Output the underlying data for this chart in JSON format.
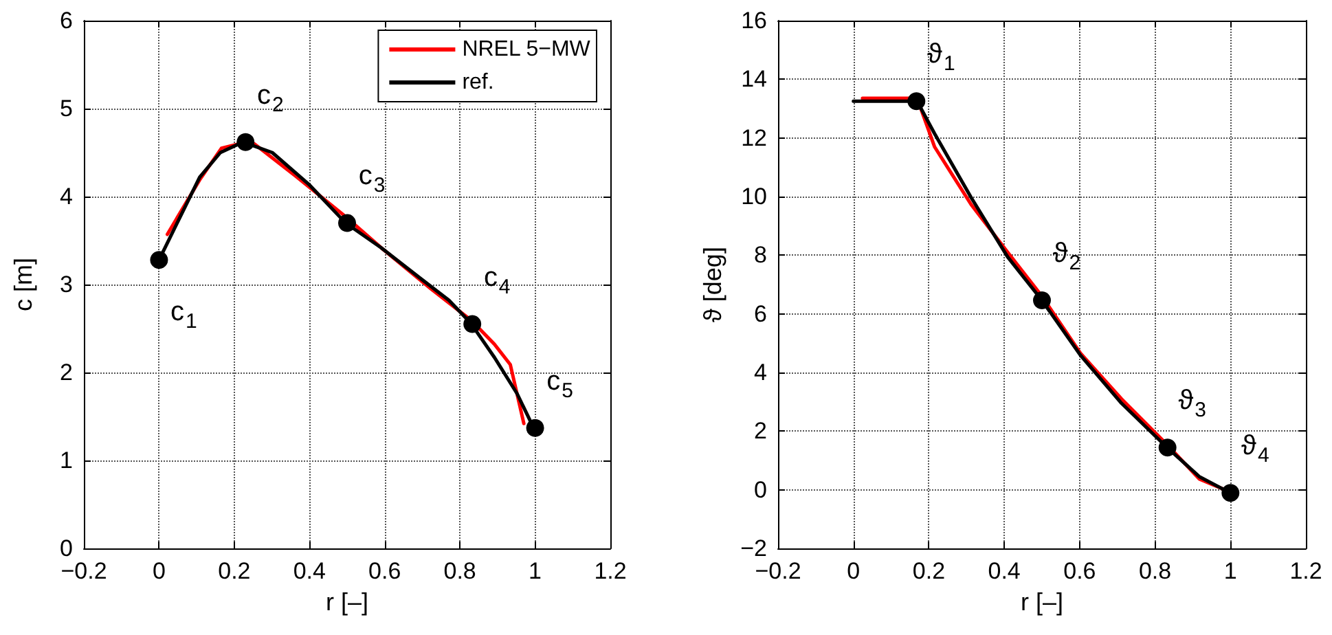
{
  "chart_data": [
    {
      "type": "line",
      "xlabel": "r [–]",
      "ylabel": "c [m]",
      "xlim": [
        -0.2,
        1.2
      ],
      "ylim": [
        0,
        6
      ],
      "xticks": [
        {
          "value": -0.2,
          "label": "−0.2"
        },
        0,
        0.2,
        0.4,
        0.6,
        0.8,
        1,
        1.2
      ],
      "yticks": [
        0,
        1,
        2,
        3,
        4,
        5,
        6
      ],
      "grid": true,
      "legend": "top right",
      "line_style": "solid",
      "marker": "none",
      "series": [
        {
          "name": "NREL 5−MW",
          "color": "#ff0000",
          "x": [
            0.022,
            0.108,
            0.166,
            0.223,
            0.253,
            0.361,
            0.488,
            0.59,
            0.723,
            0.831,
            0.892,
            0.934,
            0.97
          ],
          "values": [
            3.57,
            4.19,
            4.55,
            4.61,
            4.6,
            4.24,
            3.8,
            3.42,
            2.95,
            2.59,
            2.32,
            2.09,
            1.42
          ]
        },
        {
          "name": "ref.",
          "color": "#000000",
          "x": [
            0,
            0.108,
            0.163,
            0.223,
            0.301,
            0.398,
            0.496,
            0.59,
            0.692,
            0.771,
            0.829,
            0.892,
            0.952,
            0.996
          ],
          "values": [
            3.28,
            4.22,
            4.5,
            4.62,
            4.5,
            4.14,
            3.7,
            3.42,
            3.08,
            2.82,
            2.56,
            2.17,
            1.76,
            1.37
          ]
        },
        {
          "type": "scatter",
          "marker": "circle",
          "color": "#000000",
          "x": [
            0,
            0.23,
            0.5,
            0.833,
            1
          ],
          "values": [
            3.28,
            4.62,
            3.7,
            2.55,
            1.37
          ]
        }
      ],
      "annotations": [
        {
          "text": "c$_{1}$",
          "x": 0,
          "y": 3.28
        },
        {
          "text": "c$_{2}$",
          "x": 0.23,
          "y": 4.62
        },
        {
          "text": "c$_{3}$",
          "x": 0.5,
          "y": 3.7
        },
        {
          "text": "c$_{4}$",
          "x": 0.833,
          "y": 2.55
        },
        {
          "text": "c$_{5}$",
          "x": 1,
          "y": 1.37
        }
      ]
    },
    {
      "type": "line",
      "xlabel": "r [–]",
      "ylabel": "ϑ [deg]",
      "xlim": [
        -0.2,
        1.2
      ],
      "ylim": [
        -2,
        16
      ],
      "xticks": [
        {
          "value": -0.2,
          "label": "−0.2"
        },
        0,
        0.2,
        0.4,
        0.6,
        0.8,
        1,
        1.2
      ],
      "yticks": [
        {
          "value": -2,
          "label": "−2"
        },
        0,
        2,
        4,
        6,
        8,
        10,
        12,
        14,
        16
      ],
      "grid": true,
      "line_style": "solid",
      "marker": "none",
      "series": [
        {
          "color": "#ff0000",
          "x": [
            0.024,
            0.169,
            0.215,
            0.312,
            0.409,
            0.5,
            0.602,
            0.711,
            0.832,
            0.917,
            0.989
          ],
          "values": [
            13.35,
            13.35,
            11.7,
            9.73,
            8.1,
            6.6,
            4.66,
            3.1,
            1.54,
            0.37,
            -0.02
          ]
        },
        {
          "color": "#000000",
          "x": [
            0,
            0.169,
            0.215,
            0.312,
            0.409,
            0.5,
            0.602,
            0.711,
            0.832,
            0.917,
            1
          ],
          "values": [
            13.25,
            13.25,
            12.15,
            9.97,
            7.94,
            6.46,
            4.59,
            2.95,
            1.44,
            0.45,
            -0.11
          ]
        },
        {
          "type": "scatter",
          "marker": "circle",
          "color": "#000000",
          "x": [
            0.167,
            0.5,
            0.833,
            1
          ],
          "values": [
            13.25,
            6.46,
            1.44,
            -0.11
          ]
        }
      ],
      "annotations": [
        {
          "text": "ϑ$_{1}$",
          "x": 0.167,
          "y": 13.25
        },
        {
          "text": "ϑ$_{2}$",
          "x": 0.5,
          "y": 6.46
        },
        {
          "text": "ϑ$_{3}$",
          "x": 0.833,
          "y": 1.44
        },
        {
          "text": "ϑ$_{4}$",
          "x": 1,
          "y": -0.11
        }
      ]
    }
  ]
}
